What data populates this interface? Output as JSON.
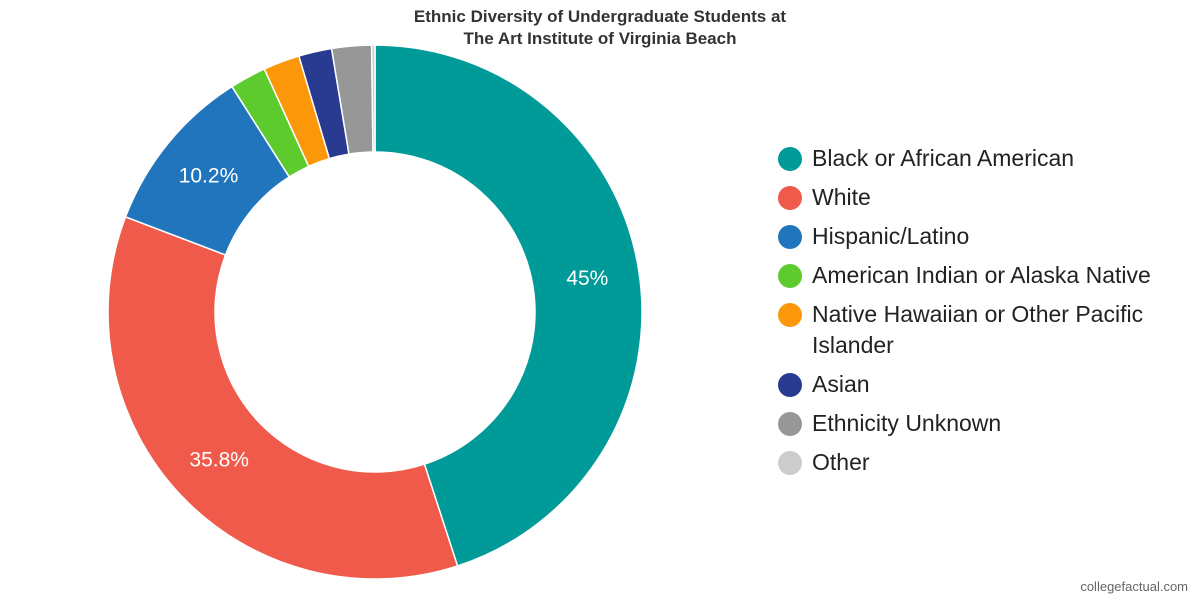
{
  "chart_data": {
    "type": "pie",
    "donut": true,
    "title": "Ethnic Diversity of Undergraduate Students at The Art Institute of Virginia Beach",
    "title_lines": [
      "Ethnic Diversity of Undergraduate Students at",
      "The Art Institute of Virginia Beach"
    ],
    "legend_position": "right",
    "slices": [
      {
        "name": "Black or African American",
        "value": 45.0,
        "label": "45%",
        "color": "#009a98"
      },
      {
        "name": "White",
        "value": 35.8,
        "label": "35.8%",
        "color": "#f05a4b"
      },
      {
        "name": "Hispanic/Latino",
        "value": 10.2,
        "label": "10.2%",
        "color": "#2175bd"
      },
      {
        "name": "American Indian or Alaska Native",
        "value": 2.2,
        "label": "",
        "color": "#5dcb2d"
      },
      {
        "name": "Native Hawaiian or Other Pacific Islander",
        "value": 2.2,
        "label": "",
        "color": "#fb9709"
      },
      {
        "name": "Asian",
        "value": 2.0,
        "label": "",
        "color": "#293a91"
      },
      {
        "name": "Ethnicity Unknown",
        "value": 2.4,
        "label": "",
        "color": "#979797"
      },
      {
        "name": "Other",
        "value": 0.2,
        "label": "",
        "color": "#cccccc"
      }
    ]
  },
  "watermark": "collegefactual.com"
}
